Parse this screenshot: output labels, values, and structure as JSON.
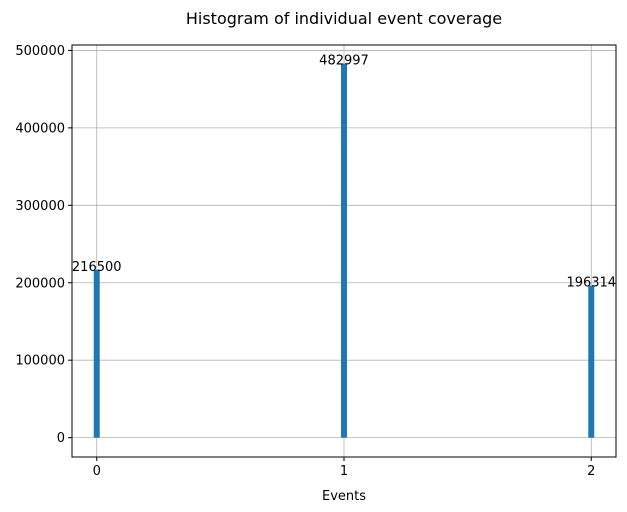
{
  "chart_data": {
    "type": "bar",
    "title": "Histogram of individual event coverage",
    "xlabel": "Events",
    "ylabel": "",
    "categories": [
      "0",
      "1",
      "2"
    ],
    "x": [
      0,
      1,
      2
    ],
    "values": [
      216500,
      482997,
      196314
    ],
    "data_labels": [
      "216500",
      "482997",
      "196314"
    ],
    "xlim": [
      -0.1,
      2.1
    ],
    "ylim": [
      -25000,
      507000
    ],
    "y_ticks": [
      0,
      100000,
      200000,
      300000,
      400000,
      500000
    ],
    "y_tick_labels": [
      "0",
      "100000",
      "200000",
      "300000",
      "400000",
      "500000"
    ],
    "x_tick_labels": [
      "0",
      "1",
      "2"
    ],
    "grid": true,
    "bar_color": "#1f77b4",
    "grid_color": "#b0b0b0"
  }
}
